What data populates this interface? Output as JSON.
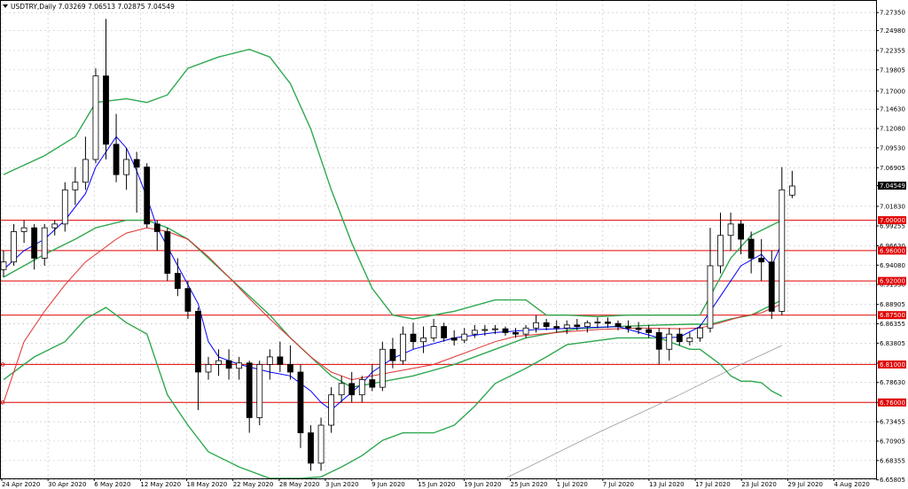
{
  "window": {
    "symbol_header": "USDTRY,Daily  7.03269 7.06513 7.02875 7.04549",
    "current_price_label": "7.04549"
  },
  "colors": {
    "bull_body": "#ffffff",
    "bear_body": "#000000",
    "candle_outline": "#000000",
    "bollinger": "#2fa84f",
    "ma_blue": "#0000ff",
    "ma_red": "#e03030",
    "ma_gray": "#9a9a9a",
    "levels": "#e00000",
    "price_box": "#000000",
    "grid": "#c8c8c8"
  },
  "chart_data": {
    "type": "candlestick",
    "symbol": "USDTRY",
    "timeframe": "Daily",
    "ylim": [
      6.66,
      7.29
    ],
    "y_ticks": [
      "7.27350",
      "7.24980",
      "7.22355",
      "7.19805",
      "7.17000",
      "7.14630",
      "7.12080",
      "7.09530",
      "7.06905",
      "7.04549",
      "7.01830",
      "6.99255",
      "6.96630",
      "6.94080",
      "6.91530",
      "6.88905",
      "6.86355",
      "6.83805",
      "6.81180",
      "6.78630",
      "6.76000",
      "6.73455",
      "6.70905",
      "6.68355",
      "6.65805"
    ],
    "x_tick_labels": [
      "24 Apr 2020",
      "30 Apr 2020",
      "6 May 2020",
      "12 May 2020",
      "18 May 2020",
      "22 May 2020",
      "28 May 2020",
      "3 Jun 2020",
      "9 Jun 2020",
      "15 Jun 2020",
      "19 Jun 2020",
      "25 Jun 2020",
      "1 Jul 2020",
      "7 Jul 2020",
      "13 Jul 2020",
      "17 Jul 2020",
      "23 Jul 2020",
      "29 Jul 2020",
      "4 Aug 2020"
    ],
    "levels": [
      {
        "value": 7.0,
        "label": "7.00000"
      },
      {
        "value": 6.96,
        "label": "6.96000"
      },
      {
        "value": 6.92,
        "label": "6.92000"
      },
      {
        "value": 6.875,
        "label": "6.87500"
      },
      {
        "value": 6.81,
        "label": "6.81000"
      },
      {
        "value": 6.76,
        "label": "6.76000"
      }
    ],
    "candles": [
      [
        6.935,
        6.96,
        6.925,
        6.945
      ],
      [
        6.945,
        6.995,
        6.94,
        6.985
      ],
      [
        6.985,
        7.0,
        6.97,
        6.99
      ],
      [
        6.99,
        6.995,
        6.935,
        6.95
      ],
      [
        6.95,
        6.995,
        6.94,
        6.99
      ],
      [
        6.99,
        7.0,
        6.98,
        6.995
      ],
      [
        6.995,
        7.05,
        6.985,
        7.04
      ],
      [
        7.04,
        7.07,
        7.02,
        7.05
      ],
      [
        7.05,
        7.11,
        7.04,
        7.08
      ],
      [
        7.08,
        7.2,
        7.075,
        7.19
      ],
      [
        7.19,
        7.265,
        7.08,
        7.1
      ],
      [
        7.1,
        7.14,
        7.05,
        7.06
      ],
      [
        7.06,
        7.095,
        7.04,
        7.08
      ],
      [
        7.08,
        7.09,
        7.01,
        7.07
      ],
      [
        7.07,
        7.075,
        6.99,
        6.995
      ],
      [
        6.995,
        7.0,
        6.96,
        6.985
      ],
      [
        6.985,
        6.99,
        6.92,
        6.93
      ],
      [
        6.93,
        6.95,
        6.9,
        6.91
      ],
      [
        6.91,
        6.92,
        6.87,
        6.88
      ],
      [
        6.88,
        6.885,
        6.75,
        6.8
      ],
      [
        6.8,
        6.82,
        6.79,
        6.81
      ],
      [
        6.81,
        6.83,
        6.795,
        6.815
      ],
      [
        6.815,
        6.83,
        6.79,
        6.805
      ],
      [
        6.805,
        6.82,
        6.79,
        6.812
      ],
      [
        6.812,
        6.815,
        6.72,
        6.74
      ],
      [
        6.74,
        6.815,
        6.73,
        6.81
      ],
      [
        6.81,
        6.83,
        6.79,
        6.82
      ],
      [
        6.82,
        6.84,
        6.8,
        6.81
      ],
      [
        6.81,
        6.835,
        6.79,
        6.8
      ],
      [
        6.8,
        6.81,
        6.7,
        6.72
      ],
      [
        6.72,
        6.73,
        6.67,
        6.68
      ],
      [
        6.68,
        6.74,
        6.67,
        6.73
      ],
      [
        6.73,
        6.78,
        6.72,
        6.77
      ],
      [
        6.77,
        6.795,
        6.76,
        6.785
      ],
      [
        6.785,
        6.8,
        6.76,
        6.77
      ],
      [
        6.77,
        6.795,
        6.76,
        6.79
      ],
      [
        6.79,
        6.81,
        6.775,
        6.78
      ],
      [
        6.78,
        6.84,
        6.775,
        6.83
      ],
      [
        6.83,
        6.845,
        6.805,
        6.815
      ],
      [
        6.815,
        6.86,
        6.81,
        6.85
      ],
      [
        6.85,
        6.865,
        6.83,
        6.84
      ],
      [
        6.84,
        6.86,
        6.825,
        6.845
      ],
      [
        6.845,
        6.87,
        6.84,
        6.86
      ],
      [
        6.86,
        6.865,
        6.84,
        6.845
      ],
      [
        6.845,
        6.855,
        6.835,
        6.842
      ],
      [
        6.842,
        6.858,
        6.838,
        6.85
      ],
      [
        6.85,
        6.862,
        6.845,
        6.855
      ],
      [
        6.855,
        6.862,
        6.848,
        6.856
      ],
      [
        6.856,
        6.862,
        6.85,
        6.857
      ],
      [
        6.857,
        6.86,
        6.848,
        6.852
      ],
      [
        6.852,
        6.858,
        6.845,
        6.85
      ],
      [
        6.85,
        6.862,
        6.845,
        6.858
      ],
      [
        6.858,
        6.875,
        6.852,
        6.865
      ],
      [
        6.865,
        6.87,
        6.855,
        6.86
      ],
      [
        6.86,
        6.868,
        6.852,
        6.858
      ],
      [
        6.858,
        6.868,
        6.85,
        6.862
      ],
      [
        6.862,
        6.87,
        6.855,
        6.86
      ],
      [
        6.86,
        6.868,
        6.852,
        6.865
      ],
      [
        6.865,
        6.872,
        6.858,
        6.866
      ],
      [
        6.866,
        6.872,
        6.858,
        6.864
      ],
      [
        6.864,
        6.868,
        6.855,
        6.86
      ],
      [
        6.86,
        6.868,
        6.852,
        6.858
      ],
      [
        6.858,
        6.866,
        6.85,
        6.856
      ],
      [
        6.856,
        6.862,
        6.845,
        6.852
      ],
      [
        6.852,
        6.858,
        6.81,
        6.83
      ],
      [
        6.83,
        6.858,
        6.815,
        6.85
      ],
      [
        6.85,
        6.858,
        6.835,
        6.84
      ],
      [
        6.84,
        6.852,
        6.835,
        6.845
      ],
      [
        6.845,
        6.862,
        6.84,
        6.858
      ],
      [
        6.858,
        6.99,
        6.852,
        6.94
      ],
      [
        6.94,
        7.01,
        6.93,
        6.98
      ],
      [
        6.98,
        7.01,
        6.96,
        6.995
      ],
      [
        6.995,
        7.0,
        6.955,
        6.975
      ],
      [
        6.975,
        6.985,
        6.93,
        6.95
      ],
      [
        6.95,
        6.975,
        6.92,
        6.945
      ],
      [
        6.945,
        6.96,
        6.87,
        6.88
      ],
      [
        6.88,
        7.07,
        6.875,
        7.04
      ],
      [
        7.033,
        7.065,
        7.029,
        7.045
      ]
    ],
    "bollinger": {
      "upper": [
        [
          0,
          7.06
        ],
        [
          4,
          7.085
        ],
        [
          7,
          7.11
        ],
        [
          9,
          7.155
        ],
        [
          12,
          7.16
        ],
        [
          14,
          7.155
        ],
        [
          16,
          7.165
        ],
        [
          18,
          7.2
        ],
        [
          21,
          7.215
        ],
        [
          24,
          7.225
        ],
        [
          26,
          7.215
        ],
        [
          28,
          7.18
        ],
        [
          30,
          7.12
        ],
        [
          32,
          7.04
        ],
        [
          34,
          6.97
        ],
        [
          36,
          6.91
        ],
        [
          38,
          6.875
        ],
        [
          40,
          6.87
        ],
        [
          44,
          6.88
        ],
        [
          48,
          6.895
        ],
        [
          51,
          6.895
        ],
        [
          53,
          6.875
        ],
        [
          55,
          6.875
        ],
        [
          58,
          6.873
        ],
        [
          61,
          6.875
        ],
        [
          64,
          6.875
        ],
        [
          67,
          6.875
        ],
        [
          68,
          6.875
        ],
        [
          69,
          6.9
        ],
        [
          71,
          6.95
        ],
        [
          73,
          6.98
        ],
        [
          76,
          7.0
        ]
      ],
      "middle": [
        [
          0,
          6.925
        ],
        [
          4,
          6.955
        ],
        [
          7,
          6.975
        ],
        [
          9,
          6.99
        ],
        [
          12,
          7.0
        ],
        [
          14,
          7.0
        ],
        [
          16,
          6.99
        ],
        [
          18,
          6.975
        ],
        [
          20,
          6.95
        ],
        [
          22,
          6.925
        ],
        [
          24,
          6.9
        ],
        [
          26,
          6.875
        ],
        [
          28,
          6.845
        ],
        [
          30,
          6.82
        ],
        [
          32,
          6.795
        ],
        [
          34,
          6.78
        ],
        [
          36,
          6.785
        ],
        [
          40,
          6.795
        ],
        [
          44,
          6.81
        ],
        [
          48,
          6.83
        ],
        [
          51,
          6.845
        ],
        [
          53,
          6.85
        ],
        [
          56,
          6.857
        ],
        [
          60,
          6.86
        ],
        [
          64,
          6.862
        ],
        [
          67,
          6.863
        ],
        [
          69,
          6.863
        ],
        [
          71,
          6.87
        ],
        [
          73,
          6.875
        ],
        [
          76,
          6.895
        ]
      ],
      "lower": [
        [
          0,
          6.79
        ],
        [
          3,
          6.82
        ],
        [
          6,
          6.84
        ],
        [
          8,
          6.87
        ],
        [
          10,
          6.885
        ],
        [
          12,
          6.865
        ],
        [
          14,
          6.85
        ],
        [
          16,
          6.77
        ],
        [
          18,
          6.73
        ],
        [
          20,
          6.695
        ],
        [
          23,
          6.675
        ],
        [
          26,
          6.66
        ],
        [
          29,
          6.66
        ],
        [
          31,
          6.662
        ],
        [
          33,
          6.675
        ],
        [
          35,
          6.69
        ],
        [
          37,
          6.71
        ],
        [
          39,
          6.72
        ],
        [
          42,
          6.72
        ],
        [
          44,
          6.73
        ],
        [
          46,
          6.755
        ],
        [
          48,
          6.785
        ],
        [
          51,
          6.805
        ],
        [
          53,
          6.82
        ],
        [
          55,
          6.836
        ],
        [
          60,
          6.845
        ],
        [
          64,
          6.845
        ],
        [
          67,
          6.83
        ],
        [
          68,
          6.83
        ],
        [
          70,
          6.81
        ],
        [
          71,
          6.795
        ],
        [
          72,
          6.788
        ],
        [
          73,
          6.788
        ],
        [
          74,
          6.786
        ],
        [
          75,
          6.775
        ],
        [
          76,
          6.768
        ]
      ]
    },
    "ma_blue": [
      [
        0,
        6.935
      ],
      [
        2,
        6.96
      ],
      [
        4,
        6.975
      ],
      [
        6,
        7.0
      ],
      [
        8,
        7.035
      ],
      [
        9,
        7.07
      ],
      [
        11,
        7.11
      ],
      [
        12,
        7.095
      ],
      [
        13,
        7.065
      ],
      [
        14,
        7.03
      ],
      [
        15,
        6.99
      ],
      [
        17,
        6.94
      ],
      [
        19,
        6.89
      ],
      [
        20,
        6.84
      ],
      [
        21,
        6.82
      ],
      [
        23,
        6.81
      ],
      [
        26,
        6.8
      ],
      [
        28,
        6.795
      ],
      [
        30,
        6.775
      ],
      [
        31,
        6.76
      ],
      [
        32,
        6.75
      ],
      [
        33,
        6.762
      ],
      [
        35,
        6.785
      ],
      [
        36,
        6.8
      ],
      [
        38,
        6.818
      ],
      [
        40,
        6.83
      ],
      [
        44,
        6.845
      ],
      [
        48,
        6.852
      ],
      [
        52,
        6.856
      ],
      [
        56,
        6.858
      ],
      [
        60,
        6.86
      ],
      [
        64,
        6.845
      ],
      [
        66,
        6.846
      ],
      [
        68,
        6.86
      ],
      [
        70,
        6.9
      ],
      [
        72,
        6.94
      ],
      [
        74,
        6.955
      ],
      [
        75,
        6.94
      ],
      [
        76,
        6.97
      ]
    ],
    "ma_red": [
      [
        0,
        6.76
      ],
      [
        2,
        6.84
      ],
      [
        4,
        6.88
      ],
      [
        6,
        6.915
      ],
      [
        8,
        6.945
      ],
      [
        10,
        6.965
      ],
      [
        11,
        6.975
      ],
      [
        12,
        6.983
      ],
      [
        14,
        6.99
      ],
      [
        16,
        6.985
      ],
      [
        18,
        6.975
      ],
      [
        20,
        6.952
      ],
      [
        22,
        6.925
      ],
      [
        24,
        6.897
      ],
      [
        26,
        6.87
      ],
      [
        28,
        6.845
      ],
      [
        30,
        6.82
      ],
      [
        32,
        6.8
      ],
      [
        34,
        6.79
      ],
      [
        36,
        6.795
      ],
      [
        38,
        6.8
      ],
      [
        40,
        6.805
      ],
      [
        42,
        6.81
      ],
      [
        44,
        6.82
      ],
      [
        46,
        6.83
      ],
      [
        48,
        6.84
      ],
      [
        50,
        6.847
      ],
      [
        54,
        6.852
      ],
      [
        58,
        6.856
      ],
      [
        62,
        6.858
      ],
      [
        66,
        6.857
      ],
      [
        68,
        6.858
      ],
      [
        70,
        6.865
      ],
      [
        72,
        6.873
      ],
      [
        74,
        6.878
      ],
      [
        76,
        6.89
      ]
    ],
    "ma_gray": [
      [
        49,
        6.66
      ],
      [
        58,
        6.72
      ],
      [
        66,
        6.77
      ],
      [
        72,
        6.81
      ],
      [
        76,
        6.835
      ]
    ]
  }
}
